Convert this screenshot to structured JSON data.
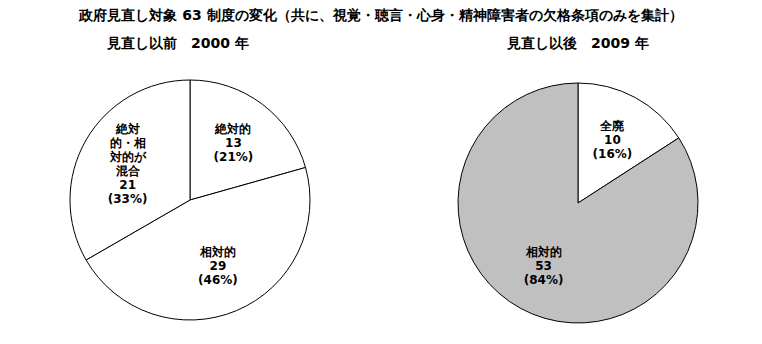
{
  "title": "政府見直し対象 63 制度の変化（共に、視覚・聴言・心身・精神障害者の欠格条項のみを集計）",
  "chart_data": [
    {
      "type": "pie",
      "title": "見直し以前　2000 年",
      "categories": [
        "絶対的",
        "相対的",
        "絶対的・相対的が混合"
      ],
      "values": [
        13,
        29,
        21
      ],
      "percent_labels": [
        "(21%)",
        "(46%)",
        "(33%)"
      ],
      "colors": [
        "#ffffff",
        "#ffffff",
        "#ffffff"
      ],
      "data_labels": true
    },
    {
      "type": "pie",
      "title": "見直し以後　2009 年",
      "categories": [
        "全廃",
        "相対的"
      ],
      "values": [
        10,
        53
      ],
      "percent_labels": [
        "(16%)",
        "(84%)"
      ],
      "colors": [
        "#ffffff",
        "#c0c0c0"
      ],
      "data_labels": true
    }
  ]
}
